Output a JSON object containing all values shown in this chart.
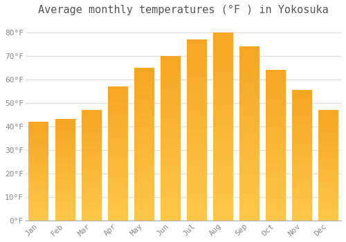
{
  "title": "Average monthly temperatures (°F ) in Yokosuka",
  "months": [
    "Jan",
    "Feb",
    "Mar",
    "Apr",
    "May",
    "Jun",
    "Jul",
    "Aug",
    "Sep",
    "Oct",
    "Nov",
    "Dec"
  ],
  "values": [
    42,
    43,
    47,
    57,
    65,
    70,
    77,
    80,
    74,
    64,
    55.5,
    47
  ],
  "bar_color_top": "#F5A623",
  "bar_color_bottom": "#FFC84A",
  "ylim": [
    0,
    85
  ],
  "yticks": [
    0,
    10,
    20,
    30,
    40,
    50,
    60,
    70,
    80
  ],
  "ytick_labels": [
    "0°F",
    "10°F",
    "20°F",
    "30°F",
    "40°F",
    "50°F",
    "60°F",
    "70°F",
    "80°F"
  ],
  "background_color": "#FFFFFF",
  "grid_color": "#E0E0E0",
  "title_fontsize": 11,
  "tick_fontsize": 8,
  "tick_color": "#888888",
  "font_family": "monospace"
}
